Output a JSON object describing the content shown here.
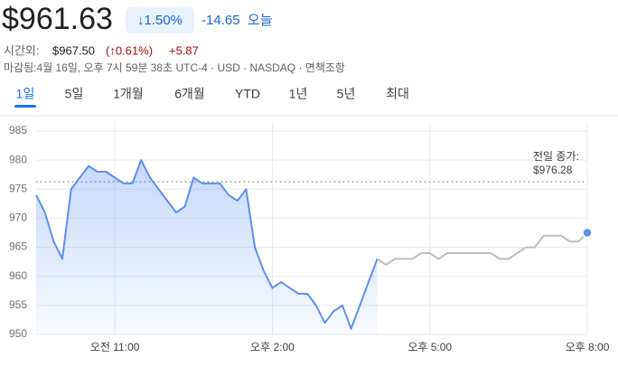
{
  "header": {
    "price": "$961.63",
    "change_pct": "↓1.50%",
    "change": "-14.65",
    "period": "오늘",
    "after_hours_label": "시간외:",
    "after_hours_price": "$967.50",
    "after_hours_pct": "(↑0.61%)",
    "after_hours_change": "+5.87",
    "info": "마감됨:4월 16일, 오후 7시 59분 38초 UTC-4 · USD · NASDAQ · 면책조항"
  },
  "tabs": [
    "1일",
    "5일",
    "1개월",
    "6개월",
    "YTD",
    "1년",
    "5년",
    "최대"
  ],
  "chart_data": {
    "type": "line",
    "x": [
      570,
      580,
      590,
      600,
      610,
      620,
      630,
      640,
      650,
      660,
      670,
      680,
      690,
      700,
      710,
      720,
      730,
      740,
      750,
      760,
      770,
      780,
      790,
      800,
      810,
      820,
      830,
      840,
      850,
      860,
      870,
      880,
      890,
      900,
      910,
      920,
      930,
      940,
      950,
      960,
      970,
      980,
      990,
      1000,
      1010,
      1020,
      1030,
      1040,
      1050,
      1060,
      1070,
      1080,
      1090,
      1100,
      1110,
      1120,
      1130,
      1140,
      1150,
      1160,
      1170,
      1180,
      1190,
      1200
    ],
    "series": [
      {
        "color": "#5b8ff0",
        "values": [
          974,
          971,
          966,
          963,
          975,
          977,
          979,
          978,
          978,
          977,
          976,
          976,
          980,
          977,
          975,
          973,
          971,
          972,
          977,
          976,
          976,
          976,
          974,
          973,
          975,
          965,
          961,
          958,
          959,
          958,
          957,
          957,
          955,
          952,
          954,
          955,
          951,
          955,
          959,
          963,
          null,
          null,
          null,
          null,
          null,
          null,
          null,
          null,
          null,
          null,
          null,
          null,
          null,
          null,
          null,
          null,
          null,
          null,
          null,
          null,
          null,
          null,
          null,
          null
        ]
      },
      {
        "color": "#bdbdbd",
        "values": [
          null,
          null,
          null,
          null,
          null,
          null,
          null,
          null,
          null,
          null,
          null,
          null,
          null,
          null,
          null,
          null,
          null,
          null,
          null,
          null,
          null,
          null,
          null,
          null,
          null,
          null,
          null,
          null,
          null,
          null,
          null,
          null,
          null,
          null,
          null,
          null,
          null,
          null,
          null,
          963,
          962,
          963,
          963,
          963,
          964,
          964,
          963,
          964,
          964,
          964,
          964,
          964,
          964,
          963,
          963,
          964,
          965,
          965,
          967,
          967,
          967,
          966,
          966,
          967.5
        ]
      }
    ],
    "xlim": [
      570,
      1200
    ],
    "xticks": [
      {
        "value": 660,
        "label": "오전 11:00"
      },
      {
        "value": 840,
        "label": "오후 2:00"
      },
      {
        "value": 1020,
        "label": "오후 5:00"
      },
      {
        "value": 1200,
        "label": "오후 8:00"
      }
    ],
    "ylim": [
      950,
      985
    ],
    "yticks": [
      950,
      955,
      960,
      965,
      970,
      975,
      980,
      985
    ],
    "grid": true,
    "previous_close": {
      "label": "전일 종가:",
      "value": 976.28,
      "value_label": "$976.28"
    }
  }
}
